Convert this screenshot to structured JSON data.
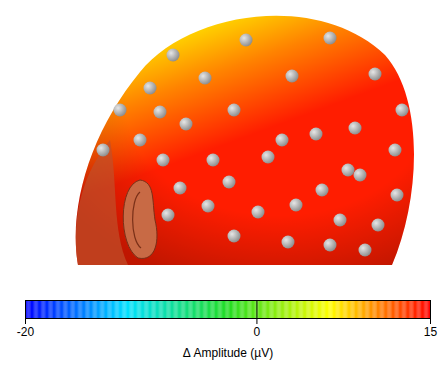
{
  "chart_data": {
    "type": "topomap",
    "scalp_amplitude_range": [
      7,
      14
    ],
    "colorbar": {
      "label": "Δ Amplitude (µV)",
      "lim": [
        -20,
        15
      ],
      "ticks": [
        -20,
        0,
        15
      ],
      "colors": [
        "#0000ff",
        "#00e0ff",
        "#22dd22",
        "#ffff00",
        "#ff0000"
      ]
    }
  }
}
